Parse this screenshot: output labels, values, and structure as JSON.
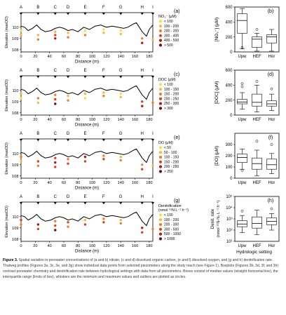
{
  "colors": {
    "line": "#000000",
    "dots": [
      "#f7dc4d",
      "#f8b540",
      "#ef7d2b",
      "#d94324",
      "#a81d1a",
      "#6b0f0f"
    ],
    "box": "#ffffff",
    "axis": "#000000"
  },
  "chart_data": [
    {
      "type": "scatter",
      "panel": "(a)",
      "xlabel": "Distance (m)",
      "ylabel": "Elevation (masOD)",
      "xlim": [
        0,
        185
      ],
      "ylim": [
        107.8,
        111.3
      ],
      "xticks": [
        "0",
        "20",
        "40",
        "60",
        "80",
        "100",
        "120",
        "140",
        "160",
        "180"
      ],
      "yticks": [
        "108",
        "109",
        "110"
      ],
      "site_labels": [
        "A",
        "B",
        "C",
        "D",
        "E",
        "F",
        "G",
        "H",
        "I"
      ],
      "site_x": [
        0,
        24,
        48,
        66,
        90,
        116,
        140,
        170,
        185
      ],
      "profile": [
        [
          0,
          110.1
        ],
        [
          5,
          110.0
        ],
        [
          10,
          109.7
        ],
        [
          16,
          109.9
        ],
        [
          22,
          110.2
        ],
        [
          28,
          109.8
        ],
        [
          34,
          109.6
        ],
        [
          42,
          109.7
        ],
        [
          48,
          109.9
        ],
        [
          54,
          110.0
        ],
        [
          60,
          109.9
        ],
        [
          66,
          109.7
        ],
        [
          72,
          109.8
        ],
        [
          80,
          109.6
        ],
        [
          88,
          110.0
        ],
        [
          96,
          109.8
        ],
        [
          104,
          110.1
        ],
        [
          112,
          110.2
        ],
        [
          120,
          110.0
        ],
        [
          128,
          110.1
        ],
        [
          136,
          110.0
        ],
        [
          144,
          109.9
        ],
        [
          150,
          110.0
        ],
        [
          158,
          110.3
        ],
        [
          162,
          110.4
        ],
        [
          166,
          110.0
        ],
        [
          170,
          109.6
        ],
        [
          176,
          109.2
        ],
        [
          180,
          109.8
        ],
        [
          185,
          110.2
        ]
      ],
      "legend_title": "NO₃⁻ (μM)",
      "legend_items": [
        "< 100",
        "100 - 200",
        "200 - 300",
        "300 - 400",
        "400 - 500",
        "> 500"
      ],
      "points": [
        [
          0,
          109.7,
          0
        ],
        [
          0,
          109.3,
          1
        ],
        [
          24,
          109.3,
          1
        ],
        [
          24,
          108.9,
          2
        ],
        [
          48,
          109.6,
          1
        ],
        [
          48,
          109.3,
          3
        ],
        [
          48,
          109.0,
          4
        ],
        [
          66,
          109.5,
          1
        ],
        [
          66,
          109.1,
          2
        ],
        [
          90,
          109.7,
          0
        ],
        [
          90,
          109.3,
          2
        ],
        [
          116,
          109.8,
          0
        ],
        [
          116,
          109.5,
          1
        ],
        [
          140,
          109.7,
          0
        ],
        [
          140,
          109.4,
          1
        ],
        [
          170,
          109.0,
          2
        ],
        [
          170,
          108.6,
          4
        ],
        [
          185,
          108.9,
          1
        ]
      ]
    },
    {
      "type": "box",
      "panel": "(b)",
      "ylabel": "[NO₃⁻] (μM)",
      "ylim": [
        0,
        600
      ],
      "yticks": [
        "0",
        "200",
        "400",
        "600"
      ],
      "categories": [
        "Upw",
        "HEF",
        "Hor"
      ],
      "boxes": [
        {
          "min": 40,
          "q1": 250,
          "median": 420,
          "q3": 510,
          "max": 580,
          "outliers": [
            60
          ]
        },
        {
          "min": 10,
          "q1": 60,
          "median": 170,
          "q3": 200,
          "max": 250,
          "outliers": [
            300
          ]
        },
        {
          "min": 10,
          "q1": 120,
          "median": 200,
          "q3": 230,
          "max": 300,
          "outliers": []
        }
      ]
    },
    {
      "type": "scatter",
      "panel": "(c)",
      "xlabel": "Distance (m)",
      "ylabel": "Elevation (masOD)",
      "xlim": [
        0,
        185
      ],
      "ylim": [
        107.8,
        111.3
      ],
      "xticks": [
        "0",
        "20",
        "40",
        "60",
        "80",
        "100",
        "120",
        "140",
        "160",
        "180"
      ],
      "yticks": [
        "108",
        "109",
        "110"
      ],
      "site_labels": [
        "A",
        "B",
        "C",
        "D",
        "E",
        "F",
        "G",
        "H",
        "I"
      ],
      "site_x": [
        0,
        24,
        48,
        66,
        90,
        116,
        140,
        170,
        185
      ],
      "profile": [
        [
          0,
          110.1
        ],
        [
          5,
          110.0
        ],
        [
          10,
          109.7
        ],
        [
          16,
          109.9
        ],
        [
          22,
          110.2
        ],
        [
          28,
          109.8
        ],
        [
          34,
          109.6
        ],
        [
          42,
          109.7
        ],
        [
          48,
          109.9
        ],
        [
          54,
          110.0
        ],
        [
          60,
          109.9
        ],
        [
          66,
          109.7
        ],
        [
          72,
          109.8
        ],
        [
          80,
          109.6
        ],
        [
          88,
          110.0
        ],
        [
          96,
          109.8
        ],
        [
          104,
          110.1
        ],
        [
          112,
          110.2
        ],
        [
          120,
          110.0
        ],
        [
          128,
          110.1
        ],
        [
          136,
          110.0
        ],
        [
          144,
          109.9
        ],
        [
          150,
          110.0
        ],
        [
          158,
          110.3
        ],
        [
          162,
          110.4
        ],
        [
          166,
          110.0
        ],
        [
          170,
          109.6
        ],
        [
          176,
          109.2
        ],
        [
          180,
          109.8
        ],
        [
          185,
          110.2
        ]
      ],
      "legend_title": "DOC (μM)",
      "legend_items": [
        "< 100",
        "100 - 150",
        "150 - 200",
        "200 - 250",
        "250 - 300",
        "> 300"
      ],
      "points": [
        [
          0,
          109.7,
          1
        ],
        [
          0,
          109.3,
          0
        ],
        [
          24,
          109.3,
          2
        ],
        [
          24,
          108.9,
          1
        ],
        [
          48,
          109.6,
          2
        ],
        [
          48,
          109.2,
          3
        ],
        [
          48,
          108.8,
          5
        ],
        [
          66,
          109.5,
          1
        ],
        [
          66,
          109.1,
          2
        ],
        [
          90,
          109.7,
          1
        ],
        [
          90,
          109.3,
          0
        ],
        [
          116,
          109.8,
          1
        ],
        [
          116,
          109.5,
          2
        ],
        [
          140,
          109.7,
          0
        ],
        [
          140,
          109.4,
          1
        ],
        [
          170,
          109.0,
          3
        ],
        [
          170,
          108.6,
          4
        ],
        [
          185,
          108.9,
          2
        ]
      ]
    },
    {
      "type": "box",
      "panel": "(d)",
      "ylabel": "[DOC] (μM)",
      "ylim": [
        0,
        600
      ],
      "yticks": [
        "0",
        "200",
        "400",
        "600"
      ],
      "categories": [
        "Upw",
        "HEF",
        "Hor"
      ],
      "boxes": [
        {
          "min": 80,
          "q1": 150,
          "median": 175,
          "q3": 210,
          "max": 300,
          "outliers": [
            380,
            420
          ]
        },
        {
          "min": 40,
          "q1": 120,
          "median": 170,
          "q3": 280,
          "max": 400,
          "outliers": [
            450
          ]
        },
        {
          "min": 60,
          "q1": 120,
          "median": 150,
          "q3": 190,
          "max": 280,
          "outliers": [
            350
          ]
        }
      ]
    },
    {
      "type": "scatter",
      "panel": "(e)",
      "xlabel": "Distance (m)",
      "ylabel": "Elevation (masOD)",
      "xlim": [
        0,
        185
      ],
      "ylim": [
        107.8,
        111.3
      ],
      "xticks": [
        "0",
        "20",
        "40",
        "60",
        "80",
        "100",
        "120",
        "140",
        "160",
        "180"
      ],
      "yticks": [
        "108",
        "109",
        "110"
      ],
      "site_labels": [
        "A",
        "B",
        "C",
        "D",
        "E",
        "F",
        "G",
        "H",
        "I"
      ],
      "site_x": [
        0,
        24,
        48,
        66,
        90,
        116,
        140,
        170,
        185
      ],
      "profile": [
        [
          0,
          110.1
        ],
        [
          5,
          110.0
        ],
        [
          10,
          109.7
        ],
        [
          16,
          109.9
        ],
        [
          22,
          110.2
        ],
        [
          28,
          109.8
        ],
        [
          34,
          109.6
        ],
        [
          42,
          109.7
        ],
        [
          48,
          109.9
        ],
        [
          54,
          110.0
        ],
        [
          60,
          109.9
        ],
        [
          66,
          109.7
        ],
        [
          72,
          109.8
        ],
        [
          80,
          109.6
        ],
        [
          88,
          110.0
        ],
        [
          96,
          109.8
        ],
        [
          104,
          110.1
        ],
        [
          112,
          110.2
        ],
        [
          120,
          110.0
        ],
        [
          128,
          110.1
        ],
        [
          136,
          110.0
        ],
        [
          144,
          109.9
        ],
        [
          150,
          110.0
        ],
        [
          158,
          110.3
        ],
        [
          162,
          110.4
        ],
        [
          166,
          110.0
        ],
        [
          170,
          109.6
        ],
        [
          176,
          109.2
        ],
        [
          180,
          109.8
        ],
        [
          185,
          110.2
        ]
      ],
      "legend_title": "DO (μM)",
      "legend_items": [
        "< 50",
        "50 - 100",
        "100 - 150",
        "150 - 200",
        "200 - 250",
        "> 250"
      ],
      "points": [
        [
          0,
          109.7,
          2
        ],
        [
          0,
          109.3,
          1
        ],
        [
          24,
          109.3,
          3
        ],
        [
          24,
          108.9,
          2
        ],
        [
          48,
          109.6,
          3
        ],
        [
          48,
          109.2,
          4
        ],
        [
          48,
          108.8,
          3
        ],
        [
          66,
          109.5,
          2
        ],
        [
          66,
          109.1,
          3
        ],
        [
          90,
          109.7,
          4
        ],
        [
          90,
          109.3,
          3
        ],
        [
          116,
          109.8,
          2
        ],
        [
          116,
          109.5,
          3
        ],
        [
          140,
          109.7,
          1
        ],
        [
          140,
          109.4,
          2
        ],
        [
          170,
          109.0,
          2
        ],
        [
          170,
          108.6,
          3
        ],
        [
          185,
          108.9,
          1
        ]
      ]
    },
    {
      "type": "box",
      "panel": "(f)",
      "ylabel": "[DO] (μM)",
      "ylim": [
        0,
        400
      ],
      "yticks": [
        "0",
        "100",
        "200",
        "300"
      ],
      "categories": [
        "Upw",
        "HEF",
        "Hor"
      ],
      "boxes": [
        {
          "min": 80,
          "q1": 140,
          "median": 185,
          "q3": 215,
          "max": 260,
          "outliers": [
            70
          ]
        },
        {
          "min": 20,
          "q1": 80,
          "median": 130,
          "q3": 180,
          "max": 250,
          "outliers": [
            330
          ]
        },
        {
          "min": 40,
          "q1": 80,
          "median": 120,
          "q3": 170,
          "max": 220,
          "outliers": [
            300
          ]
        }
      ]
    },
    {
      "type": "scatter",
      "panel": "(g)",
      "xlabel": "Distance (m)",
      "ylabel": "Elevation (masOD)",
      "xlim": [
        0,
        185
      ],
      "ylim": [
        107.8,
        111.3
      ],
      "xticks": [
        "0",
        "20",
        "40",
        "60",
        "80",
        "100",
        "120",
        "140",
        "160",
        "180"
      ],
      "yticks": [
        "108",
        "109",
        "110"
      ],
      "site_labels": [
        "A",
        "B",
        "C",
        "D",
        "E",
        "F",
        "G",
        "H",
        "I"
      ],
      "site_x": [
        0,
        24,
        48,
        66,
        90,
        116,
        140,
        170,
        185
      ],
      "profile": [
        [
          0,
          110.1
        ],
        [
          5,
          110.0
        ],
        [
          10,
          109.7
        ],
        [
          16,
          109.9
        ],
        [
          22,
          110.2
        ],
        [
          28,
          109.8
        ],
        [
          34,
          109.6
        ],
        [
          42,
          109.7
        ],
        [
          48,
          109.9
        ],
        [
          54,
          110.0
        ],
        [
          60,
          109.9
        ],
        [
          66,
          109.7
        ],
        [
          72,
          109.8
        ],
        [
          80,
          109.6
        ],
        [
          88,
          110.0
        ],
        [
          96,
          109.8
        ],
        [
          104,
          110.1
        ],
        [
          112,
          110.2
        ],
        [
          120,
          110.0
        ],
        [
          128,
          110.1
        ],
        [
          136,
          110.0
        ],
        [
          144,
          109.9
        ],
        [
          150,
          110.0
        ],
        [
          158,
          110.3
        ],
        [
          162,
          110.4
        ],
        [
          166,
          110.0
        ],
        [
          170,
          109.6
        ],
        [
          176,
          109.2
        ],
        [
          180,
          109.8
        ],
        [
          185,
          110.2
        ]
      ],
      "legend_title": "Denitrification (nmol ¹⁵N L⁻¹ h⁻¹)",
      "legend_items": [
        "< 100",
        "100 - 200",
        "200 - 300",
        "300 - 500",
        "500 - 1000",
        "> 1000"
      ],
      "points": [
        [
          0,
          109.7,
          3
        ],
        [
          0,
          109.3,
          2
        ],
        [
          24,
          109.3,
          4
        ],
        [
          24,
          108.9,
          3
        ],
        [
          48,
          109.6,
          2
        ],
        [
          48,
          109.2,
          3
        ],
        [
          48,
          108.8,
          5
        ],
        [
          66,
          109.5,
          3
        ],
        [
          66,
          109.1,
          2
        ],
        [
          90,
          109.7,
          1
        ],
        [
          90,
          109.3,
          3
        ],
        [
          116,
          109.8,
          2
        ],
        [
          116,
          109.5,
          3
        ],
        [
          140,
          109.7,
          1
        ],
        [
          140,
          109.4,
          2
        ],
        [
          170,
          109.0,
          4
        ],
        [
          170,
          108.6,
          3
        ],
        [
          185,
          108.9,
          2
        ]
      ]
    },
    {
      "type": "box",
      "panel": "(h)",
      "ylabel": "Denit. rate (nmol ¹⁵N-N₂ L⁻¹ h⁻¹)",
      "yscale": "log",
      "ylim": [
        10,
        100000
      ],
      "yticks": [
        "10¹",
        "10²",
        "10³",
        "10⁴",
        "10⁵"
      ],
      "categories": [
        "Upw",
        "HEF",
        "Hor"
      ],
      "xlabel": "Hydrologic setting",
      "boxes": [
        {
          "min": 60,
          "q1": 200,
          "median": 350,
          "q3": 700,
          "max": 2000,
          "outliers": [
            5000
          ]
        },
        {
          "min": 40,
          "q1": 150,
          "median": 400,
          "q3": 1500,
          "max": 6000,
          "outliers": []
        },
        {
          "min": 100,
          "q1": 300,
          "median": 600,
          "q3": 1200,
          "max": 3000,
          "outliers": [
            8000
          ]
        }
      ]
    }
  ],
  "caption": {
    "bold": "Figure 3.",
    "text": " Spatial variation in porewater concentrations of (a and b) nitrate, (c and d) dissolved organic carbon, (e and f) dissolved oxygen, and (g and h) denitrification rate. Thalweg profiles (Figures 3a, 3c, 3e, and 3g) show individual data points from selected piezometers along the study reach (see Figure 1). Boxplots (Figures 3b, 3d, 3f, and 3h) contrast porewater chemistry and denitrification rate between hydrological settings with data from all piezometers. Boxes consist of median values (straight horizontal line), the interquartile range (limits of box), whiskers are the minimum and maximum values and outliers are plotted as circles."
  }
}
